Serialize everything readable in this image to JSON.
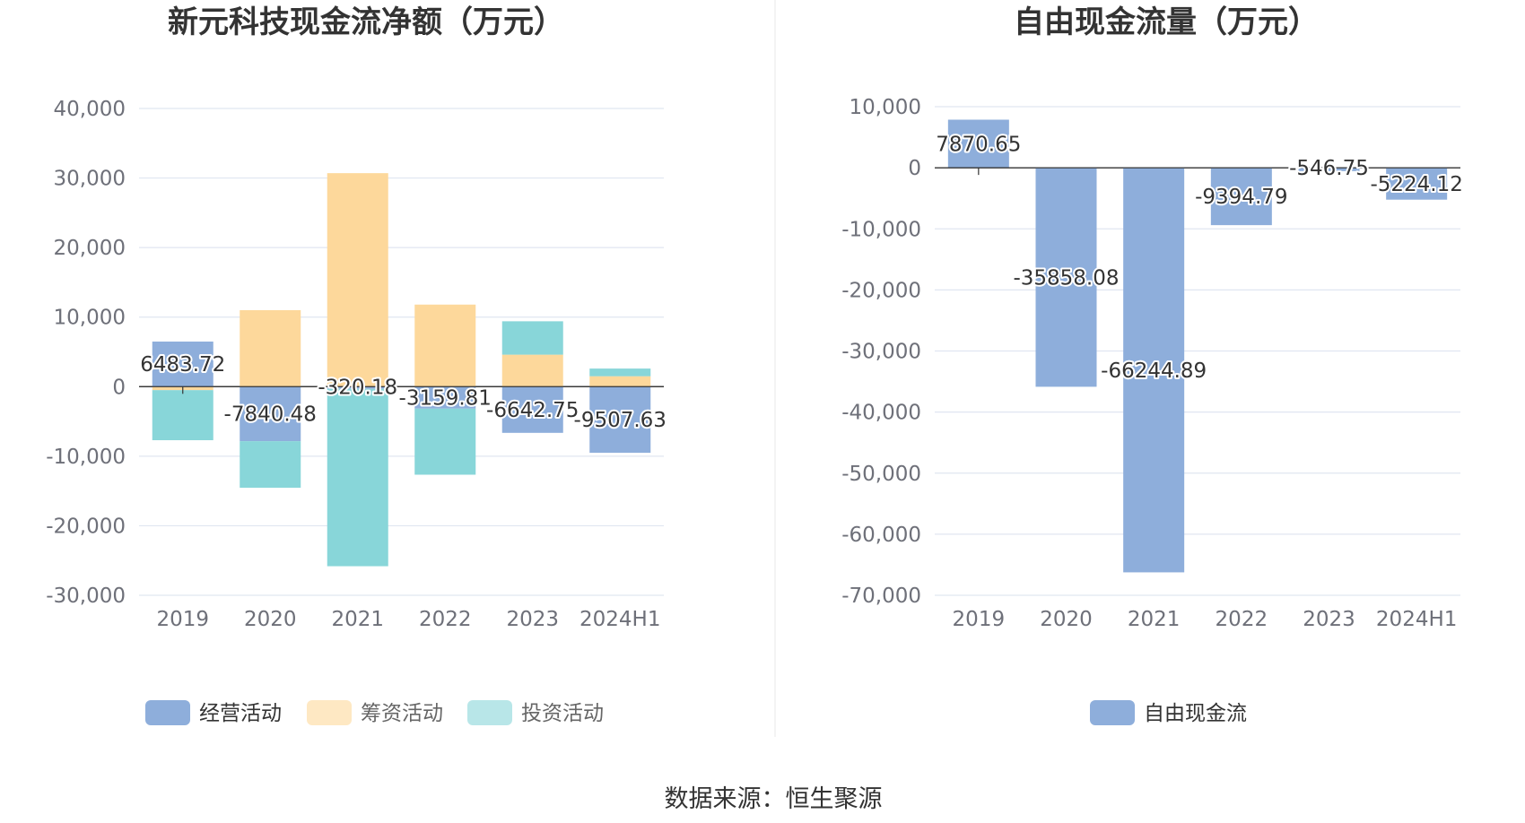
{
  "source_text": "数据来源：恒生聚源",
  "chart_data": [
    {
      "type": "bar",
      "stacked": true,
      "title": "新元科技现金流净额（万元）",
      "categories": [
        "2019",
        "2020",
        "2021",
        "2022",
        "2023",
        "2024H1"
      ],
      "ylim": [
        -30000,
        40000
      ],
      "yticks": [
        40000,
        30000,
        20000,
        10000,
        0,
        -10000,
        -20000,
        -30000
      ],
      "ytick_labels": [
        "40,000",
        "30,000",
        "20,000",
        "10,000",
        "0",
        "-10,000",
        "-20,000",
        "-30,000"
      ],
      "grid": true,
      "legend_position": "bottom",
      "series": [
        {
          "name": "经营活动",
          "color": "#8eaedb",
          "values": [
            6483.72,
            -7840.48,
            -320.18,
            -3159.81,
            -6642.75,
            -9507.63
          ],
          "labels": [
            "6483.72",
            "-7840.48",
            "-320.18",
            "-3159.81",
            "-6642.75",
            "-9507.63"
          ]
        },
        {
          "name": "筹资活动",
          "color": "#fdd89b",
          "values": [
            -500,
            11000,
            30700,
            11800,
            4600,
            1500
          ]
        },
        {
          "name": "投资活动",
          "color": "#88d6d9",
          "values": [
            -7200,
            -6700,
            -25500,
            -9500,
            4800,
            1100
          ]
        }
      ]
    },
    {
      "type": "bar",
      "title": "自由现金流量（万元）",
      "categories": [
        "2019",
        "2020",
        "2021",
        "2022",
        "2023",
        "2024H1"
      ],
      "ylim": [
        -70000,
        10000
      ],
      "yticks": [
        10000,
        0,
        -10000,
        -20000,
        -30000,
        -40000,
        -50000,
        -60000,
        -70000
      ],
      "ytick_labels": [
        "10,000",
        "0",
        "-10,000",
        "-20,000",
        "-30,000",
        "-40,000",
        "-50,000",
        "-60,000",
        "-70,000"
      ],
      "grid": true,
      "legend_position": "bottom",
      "series": [
        {
          "name": "自由现金流",
          "color": "#8eaedb",
          "values": [
            7870.65,
            -35858.08,
            -66244.89,
            -9394.79,
            -546.75,
            -5224.12
          ],
          "labels": [
            "7870.65",
            "-35858.08",
            "-66244.89",
            "-9394.79",
            "-546.75",
            "-5224.12"
          ]
        }
      ]
    }
  ]
}
